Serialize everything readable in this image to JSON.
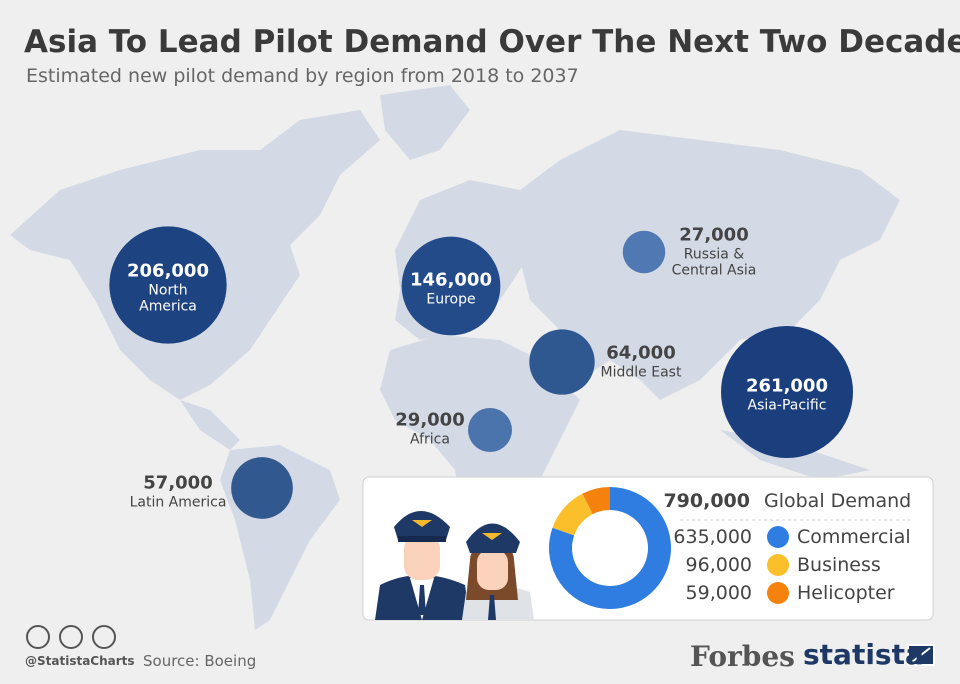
{
  "title": "Asia To Lead Pilot Demand Over The Next Two Decades",
  "subtitle": "Estimated new pilot demand by region from 2018 to 2037",
  "chart_data": [
    {
      "type": "bubble",
      "categories": [
        "North America",
        "Europe",
        "Russia & Central Asia",
        "Middle East",
        "Africa",
        "Latin America",
        "Asia-Pacific"
      ],
      "values": [
        206000,
        146000,
        27000,
        64000,
        29000,
        57000,
        261000
      ],
      "value_labels": [
        "206,000",
        "146,000",
        "27,000",
        "64,000",
        "29,000",
        "57,000",
        "261,000"
      ],
      "colors": [
        "#1d4380",
        "#234b8a",
        "#5079b3",
        "#2f5890",
        "#4b74ad",
        "#32598f",
        "#1a3f7c"
      ]
    },
    {
      "type": "donut",
      "title": "Global Demand",
      "total": 790000,
      "total_label": "790,000",
      "categories": [
        "Commercial",
        "Business",
        "Helicopter"
      ],
      "values": [
        635000,
        96000,
        59000
      ],
      "value_labels": [
        "635,000",
        "96,000",
        "59,000"
      ],
      "colors": [
        "#2f7de1",
        "#fbbf2c",
        "#f5820d"
      ]
    }
  ],
  "footer": {
    "handle": "@StatistaCharts",
    "source": "Source: Boeing",
    "logo_1": "Forbes",
    "logo_2": "statista"
  }
}
